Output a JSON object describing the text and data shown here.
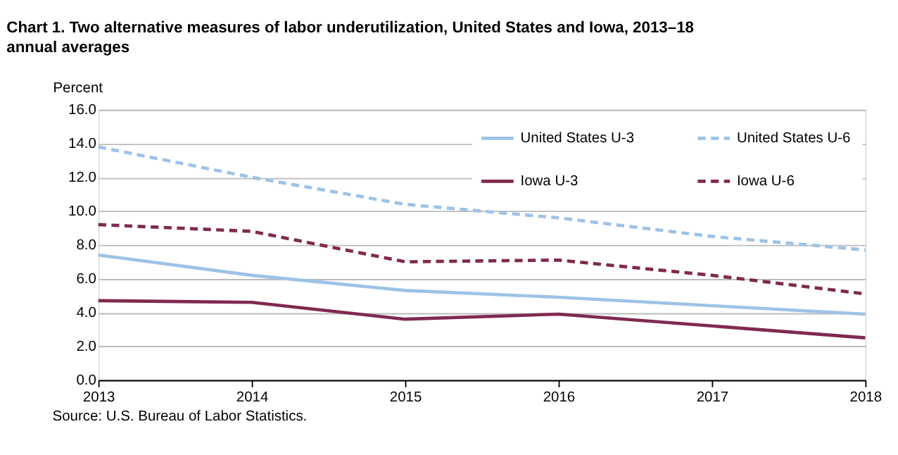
{
  "chart_data": {
    "type": "line",
    "title": "Chart 1. Two alternative measures of labor underutilization, United States and Iowa, 2013–18 annual averages",
    "ylabel": "Percent",
    "x": [
      2013,
      2014,
      2015,
      2016,
      2017,
      2018
    ],
    "xlim": [
      2013,
      2018
    ],
    "xticks": [
      2013,
      2014,
      2015,
      2016,
      2017,
      2018
    ],
    "ylim": [
      0,
      16
    ],
    "yticks": [
      {
        "value": 0,
        "label": "0.0"
      },
      {
        "value": 2,
        "label": "2.0"
      },
      {
        "value": 4,
        "label": "4.0"
      },
      {
        "value": 6,
        "label": "6.0"
      },
      {
        "value": 8,
        "label": "8.0"
      },
      {
        "value": 10,
        "label": "10.0"
      },
      {
        "value": 12,
        "label": "12.0"
      },
      {
        "value": 14,
        "label": "14.0"
      },
      {
        "value": 16,
        "label": "16.0"
      }
    ],
    "grid": "y",
    "legend": "top right",
    "marker": "none",
    "series": [
      {
        "name": "United States  U-3",
        "color": "#9dc3e6",
        "line_style": "solid",
        "values": [
          7.4,
          6.2,
          5.3,
          4.9,
          4.4,
          3.9
        ]
      },
      {
        "name": "United States  U-6",
        "color": "#9dc3e6",
        "line_style": "dashed",
        "values": [
          13.8,
          12.0,
          10.4,
          9.6,
          8.5,
          7.7
        ]
      },
      {
        "name": "Iowa  U-3",
        "color": "#7f2a4f",
        "line_style": "solid",
        "values": [
          4.7,
          4.6,
          3.6,
          3.9,
          3.2,
          2.5
        ]
      },
      {
        "name": "Iowa  U-6",
        "color": "#7f2a4f",
        "line_style": "dashed",
        "values": [
          9.2,
          8.8,
          7.0,
          7.1,
          6.2,
          5.1
        ]
      }
    ],
    "annotations": [
      "Source: U.S. Bureau of Labor Statistics."
    ]
  }
}
